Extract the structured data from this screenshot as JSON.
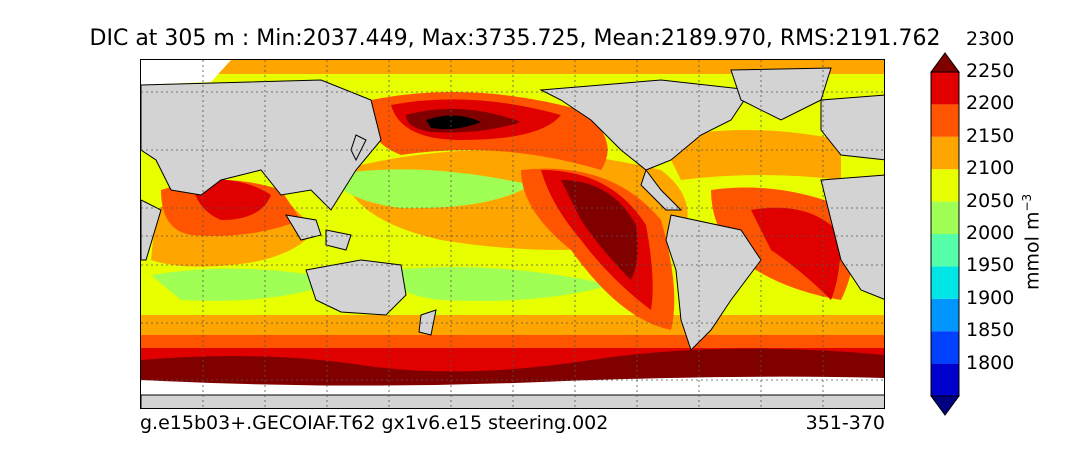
{
  "title": "DIC at 305 m : Min:2037.449, Max:3735.725, Mean:2189.970, RMS:2191.762",
  "footer": {
    "case": "g.e15b03+.GECOIAF.T62 gx1v6.e15 steering.002",
    "years": "351-370"
  },
  "colorbar": {
    "units_label": "mmol m",
    "units_exponent": "−3",
    "ticks": [
      "1800",
      "1850",
      "1900",
      "1950",
      "2000",
      "2050",
      "2100",
      "2150",
      "2200",
      "2250",
      "2300"
    ],
    "colors": [
      "#000080",
      "#0000cd",
      "#0040ff",
      "#0095ff",
      "#00e5e5",
      "#55ffaa",
      "#a0ff55",
      "#e8ff00",
      "#ffa500",
      "#ff5500",
      "#e00000",
      "#800000"
    ]
  },
  "map": {
    "land_color": "#d3d3d3",
    "no_data_color": "#ffffff"
  }
}
